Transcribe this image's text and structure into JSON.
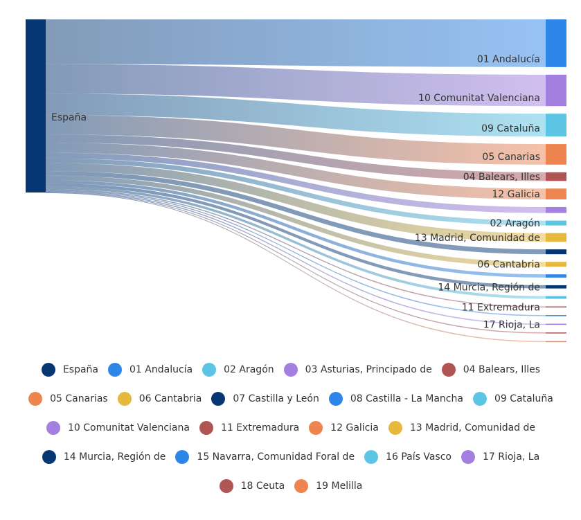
{
  "chart_data": {
    "type": "sankey",
    "source": {
      "name": "España",
      "color": "#073772"
    },
    "targets": [
      {
        "name": "01 Andalucía",
        "value": 4.4,
        "color": "#2e86e8",
        "show_label": true
      },
      {
        "name": "10 Comunitat Valenciana",
        "value": 2.9,
        "color": "#a37fdf",
        "show_label": true
      },
      {
        "name": "09 Cataluña",
        "value": 2.1,
        "color": "#5cc5e5",
        "show_label": true
      },
      {
        "name": "05 Canarias",
        "value": 1.9,
        "color": "#ee8450",
        "show_label": true
      },
      {
        "name": "04 Balears, Illes",
        "value": 0.8,
        "color": "#b05454",
        "show_label": true
      },
      {
        "name": "12 Galicia",
        "value": 1.0,
        "color": "#ee8450",
        "show_label": true
      },
      {
        "name": "03 Asturias, Principado de",
        "value": 0.55,
        "color": "#a37fdf",
        "show_label": false
      },
      {
        "name": "02 Aragón",
        "value": 0.45,
        "color": "#5cc5e5",
        "show_label": true
      },
      {
        "name": "13 Madrid, Comunidad de",
        "value": 0.8,
        "color": "#e6b93d",
        "show_label": true
      },
      {
        "name": "07 Castilla y León",
        "value": 0.45,
        "color": "#073772",
        "show_label": false
      },
      {
        "name": "06 Cantabria",
        "value": 0.45,
        "color": "#e6b93d",
        "show_label": true
      },
      {
        "name": "08 Castilla - La Mancha",
        "value": 0.3,
        "color": "#2e86e8",
        "show_label": false
      },
      {
        "name": "14 Murcia, Región de",
        "value": 0.3,
        "color": "#073772",
        "show_label": true
      },
      {
        "name": "16 País Vasco",
        "value": 0.25,
        "color": "#5cc5e5",
        "show_label": false
      },
      {
        "name": "11 Extremadura",
        "value": 0.1,
        "color": "#b05454",
        "show_label": true
      },
      {
        "name": "15 Navarra, Comunidad Foral de",
        "value": 0.08,
        "color": "#2e86e8",
        "show_label": false
      },
      {
        "name": "17 Rioja, La",
        "value": 0.1,
        "color": "#a37fdf",
        "show_label": true
      },
      {
        "name": "18 Ceuta",
        "value": 0.04,
        "color": "#b05454",
        "show_label": false
      },
      {
        "name": "19 Melilla",
        "value": 0.03,
        "color": "#ee8450",
        "show_label": false
      }
    ],
    "legend_position": "bottom"
  },
  "legend": [
    {
      "label": "España",
      "color": "#073772"
    },
    {
      "label": "01 Andalucía",
      "color": "#2e86e8"
    },
    {
      "label": "02 Aragón",
      "color": "#5cc5e5"
    },
    {
      "label": "03 Asturias, Principado de",
      "color": "#a37fdf"
    },
    {
      "label": "04 Balears, Illes",
      "color": "#b05454"
    },
    {
      "label": "05 Canarias",
      "color": "#ee8450"
    },
    {
      "label": "06 Cantabria",
      "color": "#e6b93d"
    },
    {
      "label": "07 Castilla y León",
      "color": "#073772"
    },
    {
      "label": "08 Castilla - La Mancha",
      "color": "#2e86e8"
    },
    {
      "label": "09 Cataluña",
      "color": "#5cc5e5"
    },
    {
      "label": "10 Comunitat Valenciana",
      "color": "#a37fdf"
    },
    {
      "label": "11 Extremadura",
      "color": "#b05454"
    },
    {
      "label": "12 Galicia",
      "color": "#ee8450"
    },
    {
      "label": "13 Madrid, Comunidad de",
      "color": "#e6b93d"
    },
    {
      "label": "14 Murcia, Región de",
      "color": "#073772"
    },
    {
      "label": "15 Navarra, Comunidad Foral de",
      "color": "#2e86e8"
    },
    {
      "label": "16 País Vasco",
      "color": "#5cc5e5"
    },
    {
      "label": "17 Rioja, La",
      "color": "#a37fdf"
    },
    {
      "label": "18 Ceuta",
      "color": "#b05454"
    },
    {
      "label": "19 Melilla",
      "color": "#ee8450"
    }
  ]
}
